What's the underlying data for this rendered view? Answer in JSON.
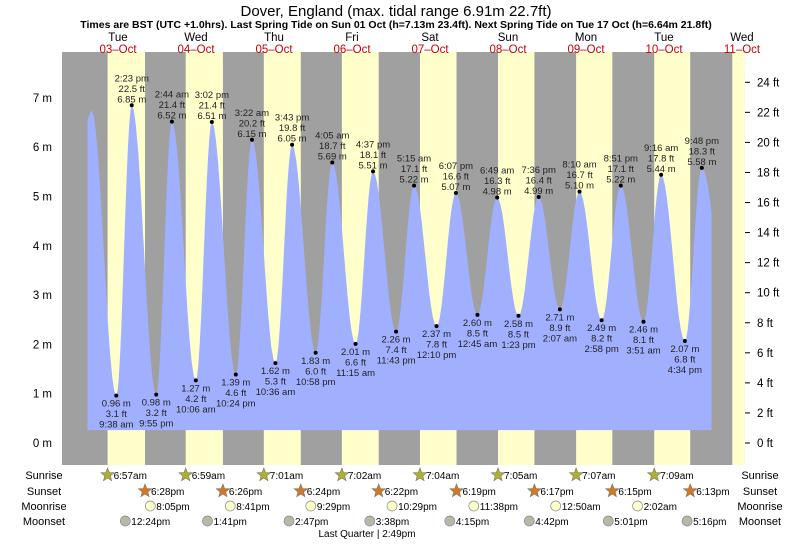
{
  "chart_data": {
    "type": "area",
    "title": "Dover, England (max. tidal range 6.91m 22.7ft)",
    "subtitle": "Times are BST (UTC +1.0hrs). Last Spring Tide on Sun 01 Oct (h=7.13m 23.4ft). Next Spring Tide on Tue 17 Oct (h=6.64m 21.8ft)",
    "ylabel_left_unit": "m",
    "ylabel_right_unit": "ft",
    "ylim_m": [
      -0.4,
      8
    ],
    "yticks_m": [
      0,
      1,
      2,
      3,
      4,
      5,
      6,
      7
    ],
    "yticks_ft": [
      0,
      2,
      4,
      6,
      8,
      10,
      12,
      14,
      16,
      18,
      20,
      22,
      24
    ],
    "days": [
      {
        "name": "Tue",
        "date": "03–Oct",
        "sunrise": "6:57am",
        "sunset": "6:28pm",
        "moonrise": "8:05pm",
        "moonset": "12:24pm"
      },
      {
        "name": "Wed",
        "date": "04–Oct",
        "sunrise": "6:59am",
        "sunset": "6:26pm",
        "moonrise": "8:41pm",
        "moonset": "1:41pm"
      },
      {
        "name": "Thu",
        "date": "05–Oct",
        "sunrise": "7:01am",
        "sunset": "6:24pm",
        "moonrise": "9:29pm",
        "moonset": "2:47pm"
      },
      {
        "name": "Fri",
        "date": "06–Oct",
        "sunrise": "7:02am",
        "sunset": "6:22pm",
        "moonrise": "10:29pm",
        "moonset": "3:38pm"
      },
      {
        "name": "Sat",
        "date": "07–Oct",
        "sunrise": "7:04am",
        "sunset": "6:19pm",
        "moonrise": "11:38pm",
        "moonset": "4:15pm"
      },
      {
        "name": "Sun",
        "date": "08–Oct",
        "sunrise": "7:05am",
        "sunset": "6:17pm",
        "moonrise": "",
        "moonset": "4:42pm"
      },
      {
        "name": "Mon",
        "date": "09–Oct",
        "sunrise": "7:07am",
        "sunset": "6:15pm",
        "moonrise": "12:50am",
        "moonset": "5:01pm"
      },
      {
        "name": "Tue",
        "date": "10–Oct",
        "sunrise": "7:09am",
        "sunset": "6:13pm",
        "moonrise": "2:02am",
        "moonset": "5:16pm"
      },
      {
        "name": "Wed",
        "date": "11–Oct"
      }
    ],
    "extremes": [
      {
        "type": "high",
        "day": 0,
        "time": "2:00 am",
        "m": 6.75,
        "ft": "",
        "label": false
      },
      {
        "type": "low",
        "day": 0,
        "time": "9:38 am",
        "m": 0.96,
        "ft": "3.1 ft",
        "mtext": "0.96 m"
      },
      {
        "type": "high",
        "day": 0,
        "time": "2:23 pm",
        "m": 6.85,
        "ft": "22.5 ft",
        "mtext": "6.85 m"
      },
      {
        "type": "low",
        "day": 0,
        "time": "9:55 pm",
        "m": 0.98,
        "ft": "3.2 ft",
        "mtext": "0.98 m"
      },
      {
        "type": "high",
        "day": 1,
        "time": "2:44 am",
        "m": 6.52,
        "ft": "21.4 ft",
        "mtext": "6.52 m"
      },
      {
        "type": "low",
        "day": 1,
        "time": "10:06 am",
        "m": 1.27,
        "ft": "4.2 ft",
        "mtext": "1.27 m"
      },
      {
        "type": "high",
        "day": 1,
        "time": "3:02 pm",
        "m": 6.51,
        "ft": "21.4 ft",
        "mtext": "6.51 m"
      },
      {
        "type": "low",
        "day": 1,
        "time": "10:24 pm",
        "m": 1.39,
        "ft": "4.6 ft",
        "mtext": "1.39 m"
      },
      {
        "type": "high",
        "day": 2,
        "time": "3:22 am",
        "m": 6.15,
        "ft": "20.2 ft",
        "mtext": "6.15 m"
      },
      {
        "type": "low",
        "day": 2,
        "time": "10:36 am",
        "m": 1.62,
        "ft": "5.3 ft",
        "mtext": "1.62 m"
      },
      {
        "type": "high",
        "day": 2,
        "time": "3:43 pm",
        "m": 6.05,
        "ft": "19.8 ft",
        "mtext": "6.05 m"
      },
      {
        "type": "low",
        "day": 2,
        "time": "10:58 pm",
        "m": 1.83,
        "ft": "6.0 ft",
        "mtext": "1.83 m"
      },
      {
        "type": "high",
        "day": 3,
        "time": "4:05 am",
        "m": 5.69,
        "ft": "18.7 ft",
        "mtext": "5.69 m"
      },
      {
        "type": "low",
        "day": 3,
        "time": "11:15 am",
        "m": 2.01,
        "ft": "6.6 ft",
        "mtext": "2.01 m"
      },
      {
        "type": "high",
        "day": 3,
        "time": "4:37 pm",
        "m": 5.51,
        "ft": "18.1 ft",
        "mtext": "5.51 m"
      },
      {
        "type": "low",
        "day": 3,
        "time": "11:43 pm",
        "m": 2.26,
        "ft": "7.4 ft",
        "mtext": "2.26 m"
      },
      {
        "type": "high",
        "day": 4,
        "time": "5:15 am",
        "m": 5.22,
        "ft": "17.1 ft",
        "mtext": "5.22 m"
      },
      {
        "type": "low",
        "day": 4,
        "time": "12:10 pm",
        "m": 2.37,
        "ft": "7.8 ft",
        "mtext": "2.37 m"
      },
      {
        "type": "high",
        "day": 4,
        "time": "6:07 pm",
        "m": 5.07,
        "ft": "16.6 ft",
        "mtext": "5.07 m"
      },
      {
        "type": "low",
        "day": 5,
        "time": "12:45 am",
        "m": 2.6,
        "ft": "8.5 ft",
        "mtext": "2.60 m"
      },
      {
        "type": "high",
        "day": 5,
        "time": "6:49 am",
        "m": 4.98,
        "ft": "16.3 ft",
        "mtext": "4.98 m"
      },
      {
        "type": "low",
        "day": 5,
        "time": "1:23 pm",
        "m": 2.58,
        "ft": "8.5 ft",
        "mtext": "2.58 m"
      },
      {
        "type": "high",
        "day": 5,
        "time": "7:36 pm",
        "m": 4.99,
        "ft": "16.4 ft",
        "mtext": "4.99 m"
      },
      {
        "type": "low",
        "day": 6,
        "time": "2:07 am",
        "m": 2.71,
        "ft": "8.9 ft",
        "mtext": "2.71 m"
      },
      {
        "type": "high",
        "day": 6,
        "time": "8:10 am",
        "m": 5.1,
        "ft": "16.7 ft",
        "mtext": "5.10 m"
      },
      {
        "type": "low",
        "day": 6,
        "time": "2:58 pm",
        "m": 2.49,
        "ft": "8.2 ft",
        "mtext": "2.49 m"
      },
      {
        "type": "high",
        "day": 6,
        "time": "8:51 pm",
        "m": 5.22,
        "ft": "17.1 ft",
        "mtext": "5.22 m"
      },
      {
        "type": "low",
        "day": 7,
        "time": "3:51 am",
        "m": 2.46,
        "ft": "8.1 ft",
        "mtext": "2.46 m"
      },
      {
        "type": "high",
        "day": 7,
        "time": "9:16 am",
        "m": 5.44,
        "ft": "17.8 ft",
        "mtext": "5.44 m"
      },
      {
        "type": "low",
        "day": 7,
        "time": "4:34 pm",
        "m": 2.07,
        "ft": "6.8 ft",
        "mtext": "2.07 m"
      },
      {
        "type": "high",
        "day": 7,
        "time": "9:48 pm",
        "m": 5.58,
        "ft": "18.3 ft",
        "mtext": "5.58 m"
      }
    ],
    "row_labels": {
      "sunrise": "Sunrise",
      "sunset": "Sunset",
      "moonrise": "Moonrise",
      "moonset": "Moonset"
    },
    "moon_phase": {
      "label": "Last Quarter | 2:49pm",
      "day": 3,
      "time": "2:49 pm"
    },
    "colors": {
      "night": "#a0a0a0",
      "day": "#ffffcc",
      "water": "#a0b0ff",
      "date": "#cc0000",
      "sunrise": "#b0b030",
      "sunset": "#d07828",
      "moonrise": "#ffffcc",
      "moonset": "#b8b8a8"
    }
  }
}
